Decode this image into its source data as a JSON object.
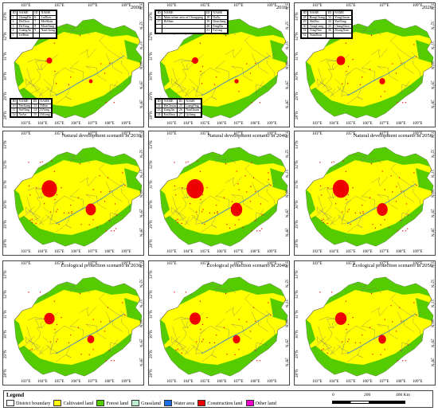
{
  "colors": {
    "district_boundary": "#ffffff",
    "cultivated_land": "#ffff00",
    "forest_land": "#55cc00",
    "grassland": "#bbeecc",
    "water_area": "#1a6ee6",
    "construction_land": "#ee0000",
    "other_land": "#ee00cc"
  },
  "panels": [
    {
      "title": "2000",
      "ticks_top": [
        "103°E",
        "105°E",
        "107°E",
        "109°E"
      ],
      "ticks_bottom": [
        "103°E",
        "104°E",
        "105°E",
        "106°E",
        "107°E",
        "108°E",
        "109°E"
      ],
      "ticks_left": [
        "28°N",
        "29°N",
        "30°N",
        "31°N",
        "32°N",
        "33°N"
      ],
      "ticks_right": [
        "28°N",
        "29°N",
        "30°N",
        "31°N",
        "32°N",
        "33°N"
      ],
      "urban_level": 0.05
    },
    {
      "title": "2010",
      "ticks_top": [
        "103°E",
        "105°E",
        "107°E",
        "109°E"
      ],
      "ticks_bottom": [
        "103°E",
        "104°E",
        "105°E",
        "106°E",
        "107°E",
        "108°E",
        "109°E"
      ],
      "ticks_left": [
        "28°N",
        "29°N",
        "30°N",
        "31°N",
        "32°N",
        "33°N"
      ],
      "ticks_right": [
        "28°N",
        "29°N",
        "30°N",
        "31°N",
        "32°N",
        "33°N"
      ],
      "urban_level": 0.08
    },
    {
      "title": "2020",
      "ticks_top": [
        "103°E",
        "105°E",
        "107°E",
        "109°E"
      ],
      "ticks_bottom": [
        "103°E",
        "104°E",
        "105°E",
        "106°E",
        "107°E",
        "108°E",
        "109°E"
      ],
      "ticks_left": [
        "28°N",
        "29°N",
        "30°N",
        "31°N",
        "32°N",
        "33°N"
      ],
      "ticks_right": [
        "28°N",
        "29°N",
        "30°N",
        "31°N",
        "32°N",
        "33°N"
      ],
      "urban_level": 0.2
    },
    {
      "title": "Natural development scenario in 2030",
      "ticks_top": [
        "103°E",
        "105°E",
        "107°E",
        "109°E"
      ],
      "ticks_bottom": [
        "103°E",
        "104°E",
        "105°E",
        "106°E",
        "107°E",
        "108°E",
        "109°E"
      ],
      "ticks_left": [
        "28°N",
        "29°N",
        "30°N",
        "31°N",
        "32°N",
        "33°N"
      ],
      "ticks_right": [
        "28°N",
        "29°N",
        "30°N",
        "31°N",
        "32°N",
        "33°N"
      ],
      "urban_level": 0.55
    },
    {
      "title": "Natural development scenario in 2040",
      "ticks_top": [
        "103°E",
        "105°E",
        "107°E",
        "109°E"
      ],
      "ticks_bottom": [
        "103°E",
        "104°E",
        "105°E",
        "106°E",
        "107°E",
        "108°E",
        "109°E"
      ],
      "ticks_left": [
        "28°N",
        "29°N",
        "30°N",
        "31°N",
        "32°N",
        "33°N"
      ],
      "ticks_right": [
        "28°N",
        "29°N",
        "30°N",
        "31°N",
        "32°N",
        "33°N"
      ],
      "urban_level": 0.65
    },
    {
      "title": "Natural development scenario in 2050",
      "ticks_top": [
        "103°E",
        "105°E",
        "107°E",
        "109°E"
      ],
      "ticks_bottom": [
        "103°E",
        "104°E",
        "105°E",
        "106°E",
        "107°E",
        "108°E",
        "109°E"
      ],
      "ticks_left": [
        "28°N",
        "29°N",
        "30°N",
        "31°N",
        "32°N",
        "33°N"
      ],
      "ticks_right": [
        "28°N",
        "29°N",
        "30°N",
        "31°N",
        "32°N",
        "33°N"
      ],
      "urban_level": 0.6
    },
    {
      "title": "Ecological protection scenario in 2030",
      "ticks_top": [
        "103°E",
        "105°E",
        "107°E",
        "109°E"
      ],
      "ticks_bottom": [
        "103°E",
        "104°E",
        "105°E",
        "106°E",
        "107°E",
        "108°E",
        "109°E"
      ],
      "ticks_left": [
        "28°N",
        "29°N",
        "30°N",
        "31°N",
        "32°N",
        "33°N"
      ],
      "ticks_right": [
        "28°N",
        "29°N",
        "30°N",
        "31°N",
        "32°N",
        "33°N"
      ],
      "urban_level": 0.3
    },
    {
      "title": "Ecological protection scenario in 2040",
      "ticks_top": [
        "103°E",
        "105°E",
        "107°E",
        "109°E"
      ],
      "ticks_bottom": [
        "103°E",
        "104°E",
        "105°E",
        "106°E",
        "107°E",
        "108°E",
        "109°E"
      ],
      "ticks_left": [
        "28°N",
        "29°N",
        "30°N",
        "31°N",
        "32°N",
        "33°N"
      ],
      "ticks_right": [
        "28°N",
        "29°N",
        "30°N",
        "31°N",
        "32°N",
        "33°N"
      ],
      "urban_level": 0.33
    },
    {
      "title": "Ecological protection scenario in 2050",
      "ticks_top": [
        "103°E",
        "105°E",
        "107°E",
        "109°E"
      ],
      "ticks_bottom": [
        "103°E",
        "104°E",
        "105°E",
        "106°E",
        "107°E",
        "108°E",
        "109°E"
      ],
      "ticks_left": [
        "28°N",
        "29°N",
        "30°N",
        "31°N",
        "32°N",
        "33°N"
      ],
      "ticks_right": [
        "28°N",
        "29°N",
        "30°N",
        "31°N",
        "32°N",
        "33°N"
      ],
      "urban_level": 0.35
    }
  ],
  "id_tables": {
    "p0_top": {
      "rows": [
        [
          "ID",
          "NAME",
          "ID",
          "NAME"
        ],
        [
          "1",
          "ChengDu",
          "6",
          "LuZhou"
        ],
        [
          "2",
          "DeZhou",
          "7",
          "MeiShan"
        ],
        [
          "3",
          "DeYang",
          "8",
          "MianYang"
        ],
        [
          "4",
          "GuangAn",
          "9",
          "NanChong"
        ],
        [
          "5",
          "LeShan",
          "",
          ""
        ]
      ]
    },
    "p0_bottom": {
      "rows": [
        [
          "ID",
          "NAME",
          "ID",
          "NAME"
        ],
        [
          "10",
          "NeiJiang",
          "13",
          "YiBin"
        ],
        [
          "11",
          "SuiNing",
          "14",
          "ZiYang"
        ],
        [
          "12",
          "YaAn",
          "15",
          "ZiGong"
        ]
      ]
    },
    "p1_top": {
      "rows": [
        [
          "ID",
          "NAME",
          "ID",
          "NAME"
        ],
        [
          "16",
          "Main urban area of Chongqing",
          "18",
          "DaZu"
        ],
        [
          "17",
          "BiShan",
          "19",
          "DianJiang"
        ],
        [
          "",
          "",
          "20",
          "FengDu"
        ],
        [
          "",
          "",
          "21",
          "FuLing"
        ]
      ]
    },
    "p1_bottom": {
      "rows": [
        [
          "ID",
          "NAME",
          "ID",
          "NAME"
        ],
        [
          "22",
          "HeChuan",
          "25",
          "LiangPing"
        ],
        [
          "23",
          "JiangJin",
          "26",
          "NanChuan"
        ],
        [
          "24",
          "KaiZhou",
          "27",
          "QiJiang"
        ]
      ]
    },
    "p2_top": {
      "rows": [
        [
          "ID",
          "NAME",
          "ID",
          "NAME"
        ],
        [
          "28",
          "RongChang",
          "33",
          "YongChuan"
        ],
        [
          "29",
          "ShiZhu",
          "34",
          "YunYang"
        ],
        [
          "30",
          "TongLiang",
          "35",
          "ChangShou"
        ],
        [
          "31",
          "TongNan",
          "36",
          "ZhongXian"
        ],
        [
          "32",
          "WanZhou",
          "",
          ""
        ]
      ]
    }
  },
  "legend": {
    "title": "Legend",
    "items": [
      {
        "label": "District boundary",
        "color": "#ffffff"
      },
      {
        "label": "Cultivated land",
        "color": "#ffff00"
      },
      {
        "label": "Forest land",
        "color": "#55cc00"
      },
      {
        "label": "Grassland",
        "color": "#bbeecc"
      },
      {
        "label": "Water area",
        "color": "#1a6ee6"
      },
      {
        "label": "Construction land",
        "color": "#ee0000"
      },
      {
        "label": "Other land",
        "color": "#ee00cc"
      }
    ]
  },
  "scalebar": {
    "ticks": [
      "0",
      "200",
      "400 Km"
    ]
  }
}
